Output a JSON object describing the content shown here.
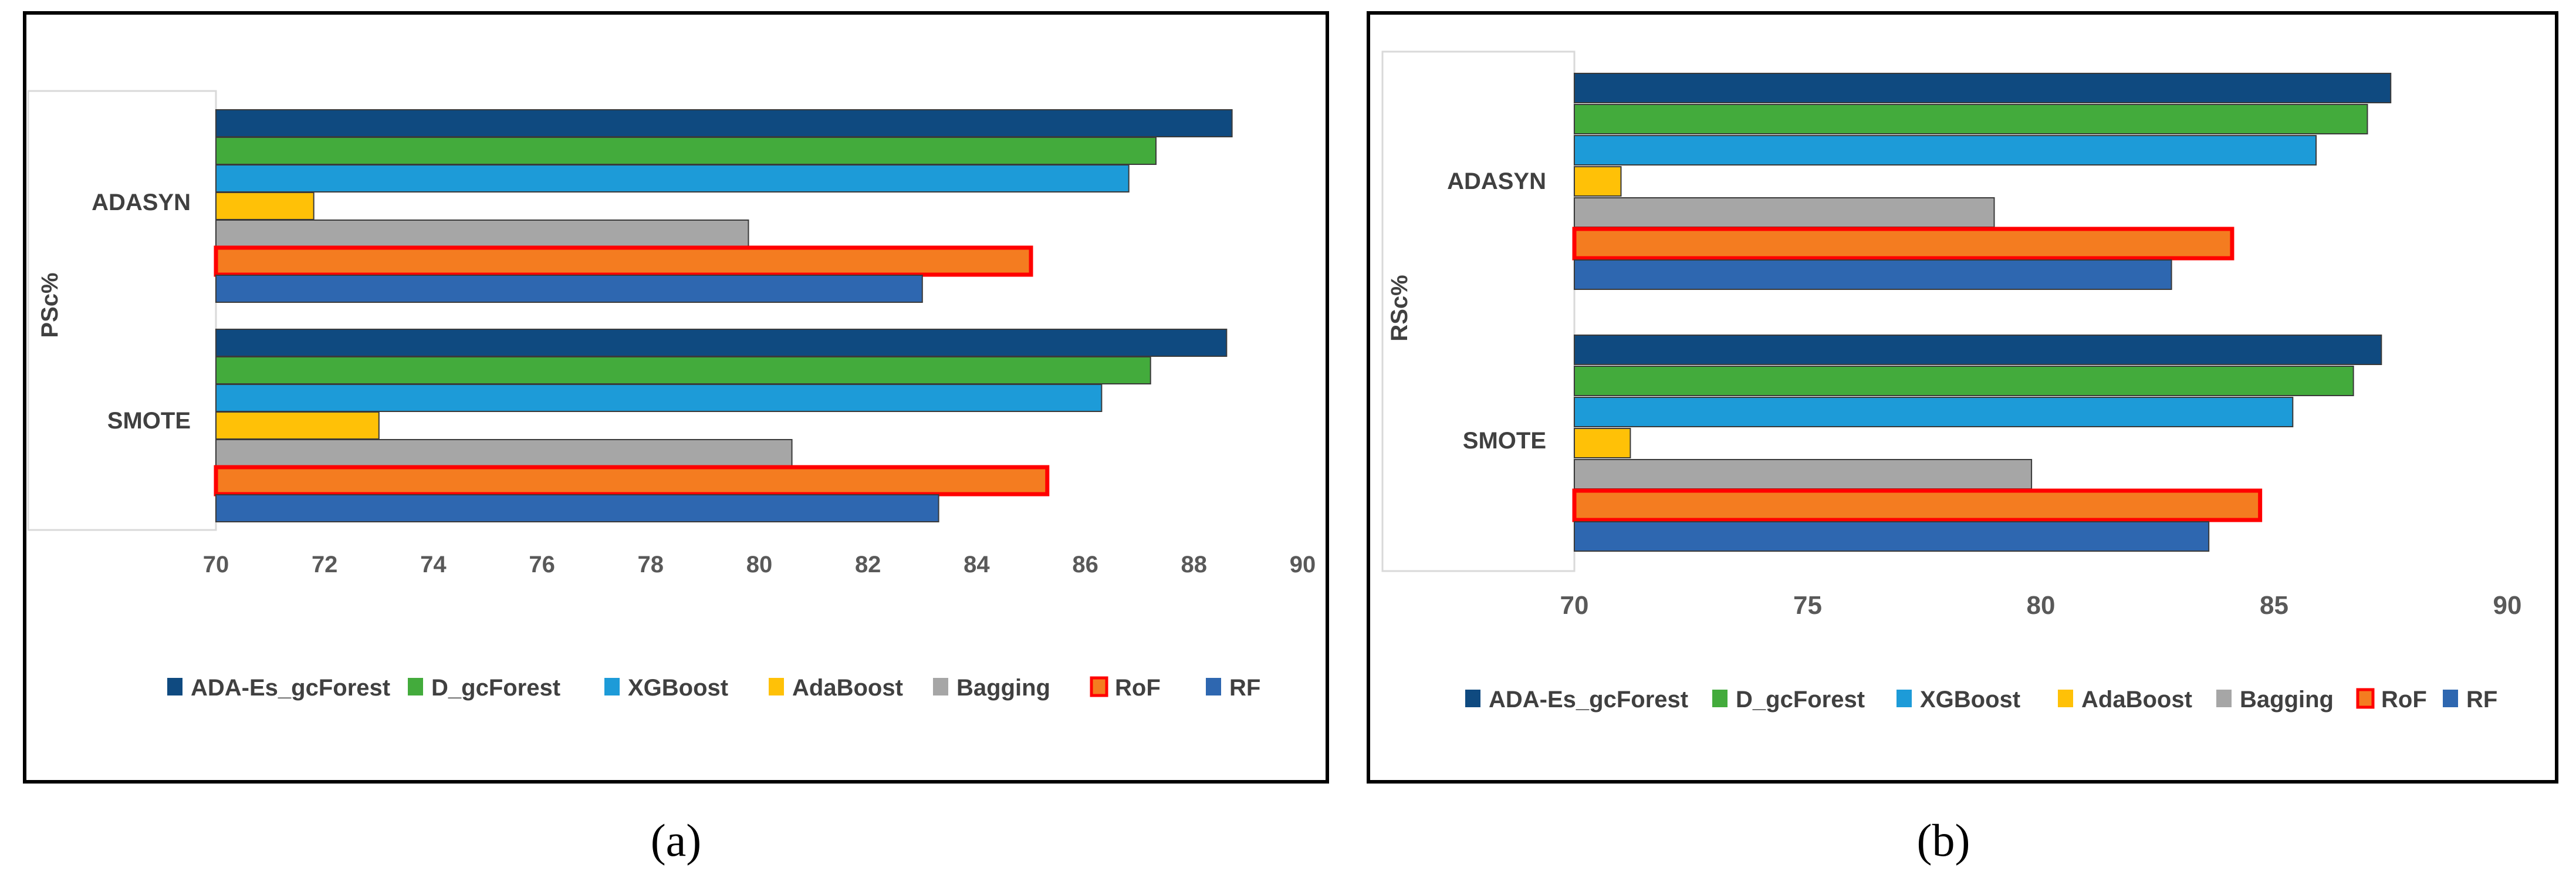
{
  "series_names": [
    "ADA-Es_gcForest",
    "D_gcForest",
    "XGBoost",
    "AdaBoost",
    "Bagging",
    "RoF",
    "RF"
  ],
  "series_colors": [
    "#0f4a80",
    "#43ab3c",
    "#1d9bd8",
    "#ffc107",
    "#a6a6a6",
    "#f47c20",
    "#2e67b0"
  ],
  "highlight_color": "#ff0000",
  "chart_data": [
    {
      "type": "bar",
      "orientation": "horizontal",
      "panel_label": "(a)",
      "ylabel": "PSc%",
      "categories": [
        "ADASYN",
        "SMOTE"
      ],
      "xlim": [
        70,
        90
      ],
      "xticks": [
        "70",
        "72",
        "74",
        "76",
        "78",
        "80",
        "82",
        "84",
        "86",
        "88",
        "90"
      ],
      "grid": false,
      "legend_position": "bottom",
      "series": [
        {
          "name": "ADA-Es_gcForest",
          "values": [
            88.7,
            88.6
          ]
        },
        {
          "name": "D_gcForest",
          "values": [
            87.3,
            87.2
          ]
        },
        {
          "name": "XGBoost",
          "values": [
            86.8,
            86.3
          ]
        },
        {
          "name": "AdaBoost",
          "values": [
            71.8,
            73.0
          ]
        },
        {
          "name": "Bagging",
          "values": [
            79.8,
            80.6
          ]
        },
        {
          "name": "RoF",
          "values": [
            85.0,
            85.3
          ]
        },
        {
          "name": "RF",
          "values": [
            83.0,
            83.3
          ]
        }
      ]
    },
    {
      "type": "bar",
      "orientation": "horizontal",
      "panel_label": "(b)",
      "ylabel": "RSc%",
      "categories": [
        "ADASYN",
        "SMOTE"
      ],
      "xlim": [
        70,
        90
      ],
      "xticks": [
        "70",
        "75",
        "80",
        "85",
        "90"
      ],
      "grid": false,
      "legend_position": "bottom",
      "series": [
        {
          "name": "ADA-Es_gcForest",
          "values": [
            87.5,
            87.3
          ]
        },
        {
          "name": "D_gcForest",
          "values": [
            87.0,
            86.7
          ]
        },
        {
          "name": "XGBoost",
          "values": [
            85.9,
            85.4
          ]
        },
        {
          "name": "AdaBoost",
          "values": [
            71.0,
            71.2
          ]
        },
        {
          "name": "Bagging",
          "values": [
            79.0,
            79.8
          ]
        },
        {
          "name": "RoF",
          "values": [
            84.1,
            84.7
          ]
        },
        {
          "name": "RF",
          "values": [
            82.8,
            83.6
          ]
        }
      ]
    }
  ]
}
